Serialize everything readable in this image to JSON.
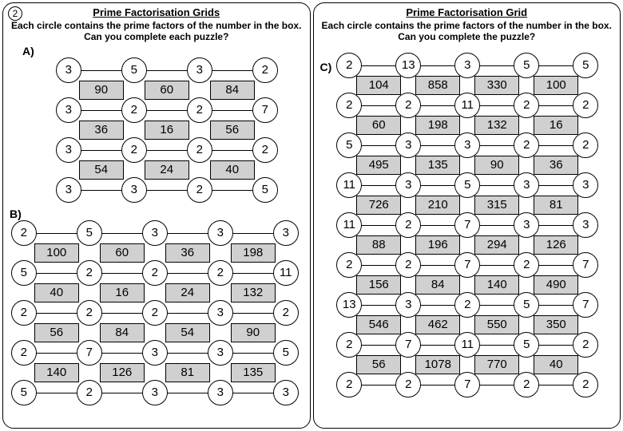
{
  "qnum": "2",
  "left_title": "Prime Factorisation Grids",
  "right_title": "Prime Factorisation Grid",
  "subtitle1": "Each circle contains the prime factors of the number in the box.",
  "subtitle2_left": "Can you complete each puzzle?",
  "subtitle2_right": "Can you complete the puzzle?",
  "A": {
    "cols": 4,
    "circles": [
      [
        "3",
        "5",
        "3",
        "2"
      ],
      [
        "3",
        "2",
        "2",
        "7"
      ],
      [
        "3",
        "2",
        "2",
        "2"
      ],
      [
        "3",
        "3",
        "2",
        "5"
      ]
    ],
    "boxes": [
      [
        "90",
        "60",
        "84"
      ],
      [
        "36",
        "16",
        "56"
      ],
      [
        "54",
        "24",
        "40"
      ]
    ]
  },
  "B": {
    "cols": 5,
    "circles": [
      [
        "2",
        "5",
        "3",
        "3",
        "3"
      ],
      [
        "5",
        "2",
        "2",
        "2",
        "11"
      ],
      [
        "2",
        "2",
        "2",
        "3",
        "2"
      ],
      [
        "2",
        "7",
        "3",
        "3",
        "5"
      ],
      [
        "5",
        "2",
        "3",
        "3",
        "3"
      ]
    ],
    "boxes": [
      [
        "100",
        "60",
        "36",
        "198"
      ],
      [
        "40",
        "16",
        "24",
        "132"
      ],
      [
        "56",
        "84",
        "54",
        "90"
      ],
      [
        "140",
        "126",
        "81",
        "135"
      ]
    ]
  },
  "C": {
    "cols": 5,
    "circles": [
      [
        "2",
        "13",
        "3",
        "5",
        "5"
      ],
      [
        "2",
        "2",
        "11",
        "2",
        "2"
      ],
      [
        "5",
        "3",
        "3",
        "2",
        "2"
      ],
      [
        "11",
        "3",
        "5",
        "3",
        "3"
      ],
      [
        "11",
        "2",
        "7",
        "3",
        "3"
      ],
      [
        "2",
        "2",
        "7",
        "2",
        "7"
      ],
      [
        "13",
        "3",
        "2",
        "5",
        "7"
      ],
      [
        "2",
        "7",
        "11",
        "5",
        "2"
      ],
      [
        "2",
        "2",
        "7",
        "2",
        "2"
      ]
    ],
    "boxes": [
      [
        "104",
        "858",
        "330",
        "100"
      ],
      [
        "60",
        "198",
        "132",
        "16"
      ],
      [
        "495",
        "135",
        "90",
        "36"
      ],
      [
        "726",
        "210",
        "315",
        "81"
      ],
      [
        "88",
        "196",
        "294",
        "126"
      ],
      [
        "156",
        "84",
        "140",
        "490"
      ],
      [
        "546",
        "462",
        "550",
        "350"
      ],
      [
        "56",
        "1078",
        "770",
        "40"
      ]
    ]
  }
}
